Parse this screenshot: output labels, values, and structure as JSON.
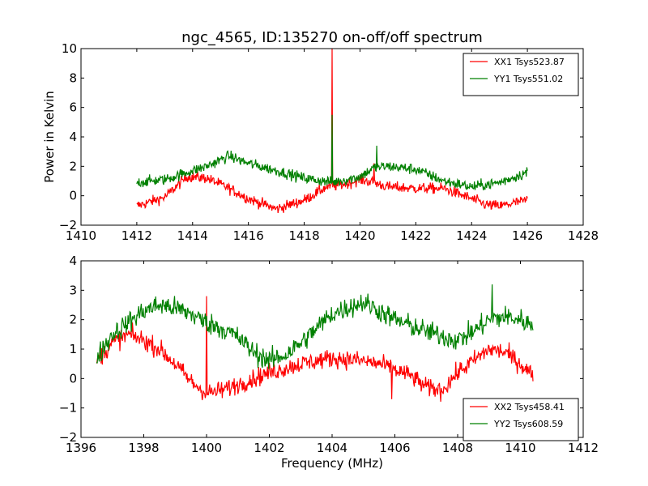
{
  "chart_data": [
    {
      "type": "line",
      "title": "ngc_4565, ID:135270 on-off/off spectrum",
      "xlabel": "",
      "ylabel": "Power in Kelvin",
      "xlim": [
        1410,
        1428
      ],
      "ylim": [
        -2,
        10
      ],
      "xticks": [
        1410,
        1412,
        1414,
        1416,
        1418,
        1420,
        1422,
        1424,
        1426,
        1428
      ],
      "yticks": [
        -2,
        0,
        2,
        4,
        6,
        8,
        10
      ],
      "xtick_labels": [
        "1410",
        "1412",
        "1414",
        "1416",
        "1418",
        "1420",
        "1422",
        "1424",
        "1426",
        "1428"
      ],
      "ytick_labels": [
        "−2",
        "0",
        "2",
        "4",
        "6",
        "8",
        "10"
      ],
      "grid": false,
      "legend_position": "top-right",
      "x_range": [
        1412,
        1426
      ],
      "series": [
        {
          "name": "XX1 Tsys523.87",
          "color": "#ff0000",
          "noise": 0.35,
          "baseline": [
            [
              1412,
              -0.7
            ],
            [
              1413,
              -0.1
            ],
            [
              1413.8,
              1.3
            ],
            [
              1414.5,
              1.2
            ],
            [
              1415.2,
              0.6
            ],
            [
              1416,
              -0.2
            ],
            [
              1417,
              -0.9
            ],
            [
              1418,
              -0.3
            ],
            [
              1418.8,
              0.6
            ],
            [
              1419.5,
              0.8
            ],
            [
              1420,
              1.1
            ],
            [
              1420.5,
              0.9
            ],
            [
              1421,
              0.6
            ],
            [
              1422,
              0.5
            ],
            [
              1423,
              0.5
            ],
            [
              1424,
              -0.2
            ],
            [
              1424.5,
              -0.6
            ],
            [
              1425,
              -0.7
            ],
            [
              1426,
              -0.3
            ]
          ],
          "spikes": [
            [
              1419.0,
              10.0
            ],
            [
              1420.5,
              2.2
            ]
          ]
        },
        {
          "name": "YY1 Tsys551.02",
          "color": "#008000",
          "noise": 0.35,
          "baseline": [
            [
              1412,
              0.9
            ],
            [
              1413,
              1.1
            ],
            [
              1414,
              1.7
            ],
            [
              1414.5,
              2.0
            ],
            [
              1415.3,
              2.7
            ],
            [
              1416,
              2.2
            ],
            [
              1417,
              1.7
            ],
            [
              1418,
              1.2
            ],
            [
              1419,
              0.9
            ],
            [
              1420,
              1.3
            ],
            [
              1420.5,
              1.9
            ],
            [
              1421,
              2.0
            ],
            [
              1422,
              1.8
            ],
            [
              1423,
              1.0
            ],
            [
              1424,
              0.6
            ],
            [
              1425,
              0.9
            ],
            [
              1426,
              1.6
            ]
          ],
          "spikes": [
            [
              1419.0,
              5.5
            ],
            [
              1420.6,
              3.4
            ]
          ]
        }
      ]
    },
    {
      "type": "line",
      "title": "",
      "xlabel": "Frequency (MHz)",
      "ylabel": "",
      "xlim": [
        1396,
        1412
      ],
      "ylim": [
        -2,
        4
      ],
      "xticks": [
        1396,
        1398,
        1400,
        1402,
        1404,
        1406,
        1408,
        1410,
        1412
      ],
      "yticks": [
        -2,
        -1,
        0,
        1,
        2,
        3,
        4
      ],
      "xtick_labels": [
        "1396",
        "1398",
        "1400",
        "1402",
        "1404",
        "1406",
        "1408",
        "1410",
        "1412"
      ],
      "ytick_labels": [
        "−2",
        "−1",
        "0",
        "1",
        "2",
        "3",
        "4"
      ],
      "grid": false,
      "legend_position": "bottom-right",
      "x_range": [
        1396.5,
        1410.4
      ],
      "series": [
        {
          "name": "XX2 Tsys458.41",
          "color": "#ff0000",
          "noise": 0.3,
          "baseline": [
            [
              1396.5,
              0.6
            ],
            [
              1397,
              1.2
            ],
            [
              1397.5,
              1.5
            ],
            [
              1398,
              1.3
            ],
            [
              1398.5,
              1.0
            ],
            [
              1399,
              0.5
            ],
            [
              1399.5,
              -0.1
            ],
            [
              1400,
              -0.5
            ],
            [
              1400.5,
              -0.4
            ],
            [
              1401,
              -0.2
            ],
            [
              1401.5,
              0.0
            ],
            [
              1402,
              0.2
            ],
            [
              1403,
              0.5
            ],
            [
              1404,
              0.7
            ],
            [
              1405,
              0.6
            ],
            [
              1405.5,
              0.5
            ],
            [
              1406,
              0.3
            ],
            [
              1406.5,
              0.1
            ],
            [
              1407,
              -0.3
            ],
            [
              1407.5,
              -0.4
            ],
            [
              1408,
              0.2
            ],
            [
              1408.5,
              0.6
            ],
            [
              1409,
              1.0
            ],
            [
              1409.5,
              0.9
            ],
            [
              1410,
              0.5
            ],
            [
              1410.4,
              0.1
            ]
          ],
          "spikes": [
            [
              1400.0,
              2.8
            ],
            [
              1405.9,
              -0.7
            ]
          ]
        },
        {
          "name": "YY2 Tsys608.59",
          "color": "#008000",
          "noise": 0.35,
          "baseline": [
            [
              1396.5,
              0.7
            ],
            [
              1397,
              1.5
            ],
            [
              1397.5,
              1.9
            ],
            [
              1398,
              2.3
            ],
            [
              1398.5,
              2.5
            ],
            [
              1399,
              2.4
            ],
            [
              1399.5,
              2.2
            ],
            [
              1400,
              1.9
            ],
            [
              1400.5,
              1.7
            ],
            [
              1401,
              1.4
            ],
            [
              1401.5,
              0.9
            ],
            [
              1402,
              0.6
            ],
            [
              1402.5,
              0.8
            ],
            [
              1403,
              1.2
            ],
            [
              1403.5,
              1.7
            ],
            [
              1404,
              2.2
            ],
            [
              1404.5,
              2.4
            ],
            [
              1405,
              2.6
            ],
            [
              1405.5,
              2.3
            ],
            [
              1406,
              2.0
            ],
            [
              1407,
              1.6
            ],
            [
              1408,
              1.3
            ],
            [
              1408.5,
              1.6
            ],
            [
              1409,
              2.0
            ],
            [
              1409.5,
              2.1
            ],
            [
              1410,
              2.0
            ],
            [
              1410.4,
              1.8
            ]
          ],
          "spikes": [
            [
              1409.1,
              3.2
            ]
          ]
        }
      ]
    }
  ]
}
